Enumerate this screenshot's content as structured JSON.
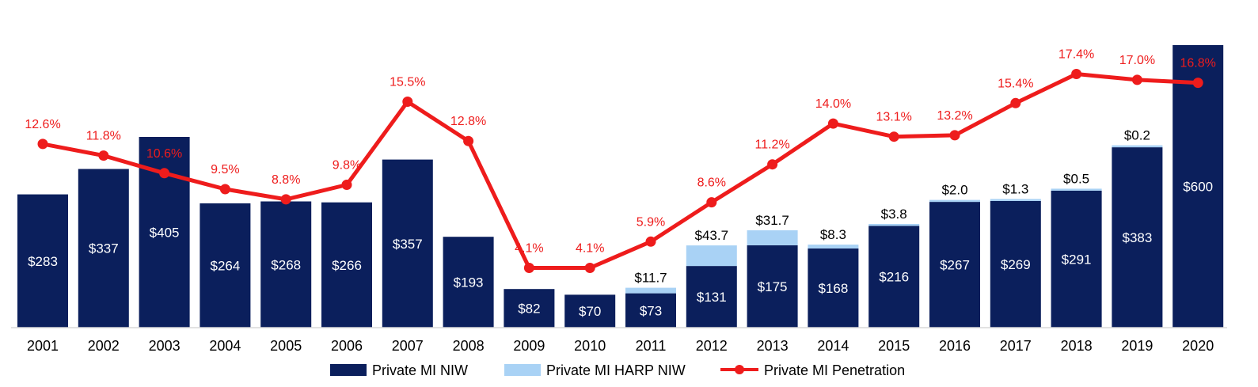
{
  "chart_data": {
    "type": "bar",
    "categories": [
      "2001",
      "2002",
      "2003",
      "2004",
      "2005",
      "2006",
      "2007",
      "2008",
      "2009",
      "2010",
      "2011",
      "2012",
      "2013",
      "2014",
      "2015",
      "2016",
      "2017",
      "2018",
      "2019",
      "2020"
    ],
    "series": [
      {
        "name": "Private MI NIW",
        "kind": "bar",
        "color": "#0b1f5c",
        "values": [
          283,
          337,
          405,
          264,
          268,
          266,
          357,
          193,
          82,
          70,
          73,
          131,
          175,
          168,
          216,
          267,
          269,
          291,
          383,
          600
        ],
        "labels": [
          "$283",
          "$337",
          "$405",
          "$264",
          "$268",
          "$266",
          "$357",
          "$193",
          "$82",
          "$70",
          "$73",
          "$131",
          "$175",
          "$168",
          "$216",
          "$267",
          "$269",
          "$291",
          "$383",
          "$600"
        ]
      },
      {
        "name": "Private MI HARP NIW",
        "kind": "bar-stacked",
        "color": "#a9d2f5",
        "values": [
          null,
          null,
          null,
          null,
          null,
          null,
          null,
          null,
          null,
          null,
          11.7,
          43.7,
          31.7,
          8.3,
          3.8,
          2.0,
          1.3,
          0.5,
          0.2,
          null
        ],
        "labels": [
          "",
          "",
          "",
          "",
          "",
          "",
          "",
          "",
          "",
          "",
          "$11.7",
          "$43.7",
          "$31.7",
          "$8.3",
          "$3.8",
          "$2.0",
          "$1.3",
          "$0.5",
          "$0.2",
          ""
        ]
      },
      {
        "name": "Private MI Penetration",
        "kind": "line",
        "color": "#ee1c1c",
        "values": [
          12.6,
          11.8,
          10.6,
          9.5,
          8.8,
          9.8,
          15.5,
          12.8,
          4.1,
          4.1,
          5.9,
          8.6,
          11.2,
          14.0,
          13.1,
          13.2,
          15.4,
          17.4,
          17.0,
          16.8
        ],
        "labels": [
          "12.6%",
          "11.8%",
          "10.6%",
          "9.5%",
          "8.8%",
          "9.8%",
          "15.5%",
          "12.8%",
          "4.1%",
          "4.1%",
          "5.9%",
          "8.6%",
          "11.2%",
          "14.0%",
          "13.1%",
          "13.2%",
          "15.4%",
          "17.4%",
          "17.0%",
          "16.8%"
        ]
      }
    ],
    "ylim_bars": [
      0,
      640
    ],
    "ylim_line": [
      0,
      20
    ],
    "grid": false,
    "legend": "bottom-center",
    "title": "",
    "xlabel": "",
    "ylabel": ""
  }
}
